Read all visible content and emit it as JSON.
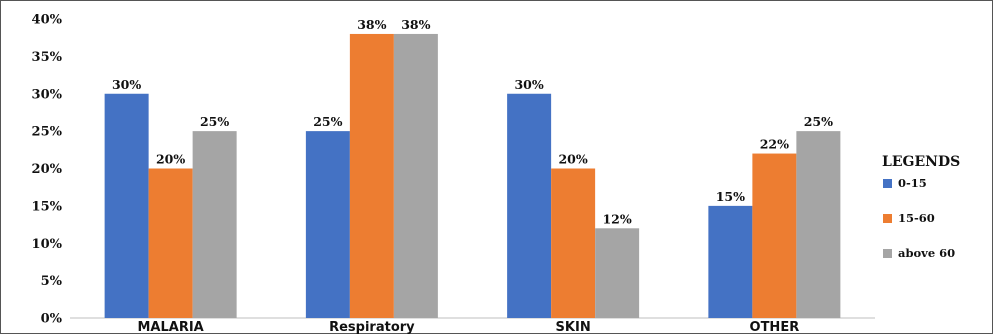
{
  "chart_data": {
    "type": "bar",
    "title": "",
    "xlabel": "",
    "ylabel": "",
    "categories": [
      "MALARIA",
      "Respiratory",
      "SKIN",
      "OTHER"
    ],
    "series": [
      {
        "name": "0-15",
        "color": "#4472C4",
        "values": [
          30,
          25,
          30,
          15
        ]
      },
      {
        "name": "15-60",
        "color": "#ED7D31",
        "values": [
          20,
          38,
          20,
          22
        ]
      },
      {
        "name": "above 60",
        "color": "#A5A5A5",
        "values": [
          25,
          38,
          12,
          25
        ]
      }
    ],
    "ylim": [
      0,
      40
    ],
    "yticks": [
      0,
      5,
      10,
      15,
      20,
      25,
      30,
      35,
      40
    ],
    "ytick_labels": [
      "0%",
      "5%",
      "10%",
      "15%",
      "20%",
      "25%",
      "30%",
      "35%",
      "40%"
    ],
    "data_labels": [
      [
        "30%",
        "25%",
        "30%",
        "15%"
      ],
      [
        "20%",
        "38%",
        "20%",
        "22%"
      ],
      [
        "25%",
        "38%",
        "12%",
        "25%"
      ]
    ],
    "grid": false,
    "legend": {
      "title": "LEGENDS",
      "placement": "right"
    }
  }
}
